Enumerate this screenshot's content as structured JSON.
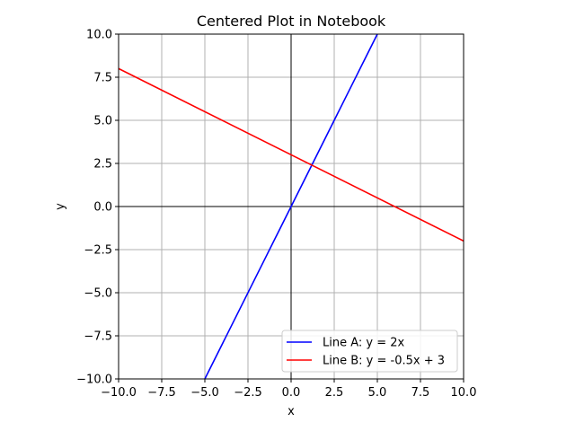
{
  "chart_data": {
    "type": "line",
    "title": "Centered Plot in Notebook",
    "xlabel": "x",
    "ylabel": "y",
    "xlim": [
      -10,
      10
    ],
    "ylim": [
      -10,
      10
    ],
    "xticks": [
      -10,
      -7.5,
      -5,
      -2.5,
      0,
      2.5,
      5,
      7.5,
      10
    ],
    "yticks": [
      -10,
      -7.5,
      -5,
      -2.5,
      0,
      2.5,
      5,
      7.5,
      10
    ],
    "xtick_labels": [
      "−10.0",
      "−7.5",
      "−5.0",
      "−2.5",
      "0.0",
      "2.5",
      "5.0",
      "7.5",
      "10.0"
    ],
    "ytick_labels": [
      "−10.0",
      "−7.5",
      "−5.0",
      "−2.5",
      "0.0",
      "2.5",
      "5.0",
      "7.5",
      "10.0"
    ],
    "grid": true,
    "zero_lines": true,
    "legend_position": "lower-right",
    "series": [
      {
        "name": "Line A: y = 2x",
        "color": "#0000ff",
        "x": [
          -5,
          5
        ],
        "y": [
          -10,
          10
        ]
      },
      {
        "name": "Line B: y = -0.5x + 3",
        "color": "#ff0000",
        "x": [
          -10,
          10
        ],
        "y": [
          8,
          -2
        ]
      }
    ]
  }
}
